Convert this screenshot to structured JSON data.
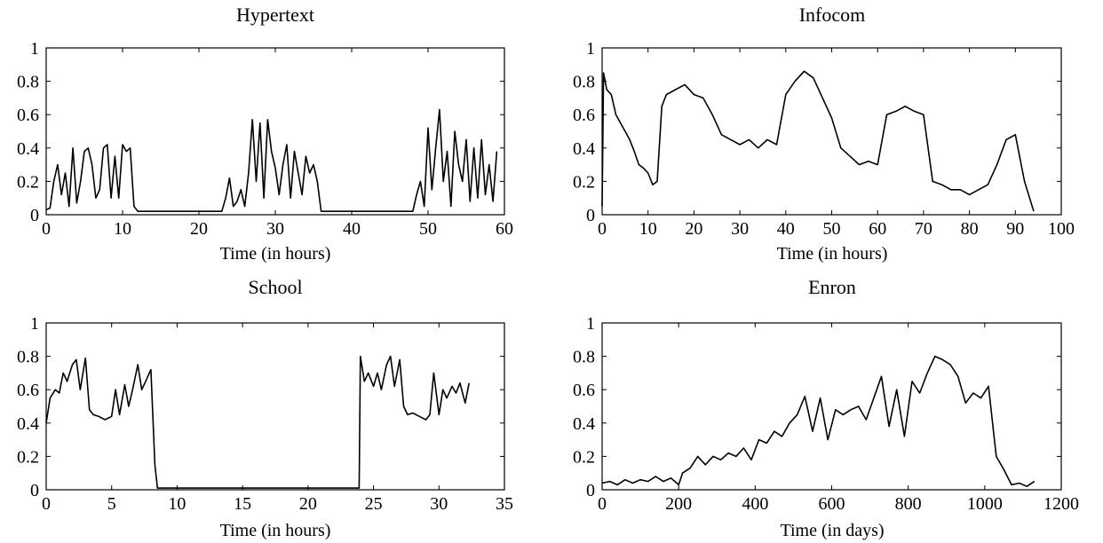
{
  "chart_data": [
    {
      "type": "line",
      "title": "Hypertext",
      "xlabel": "Time (in hours)",
      "ylabel": "",
      "xlim": [
        0,
        60
      ],
      "ylim": [
        0,
        1
      ],
      "xticks": [
        "0",
        "10",
        "20",
        "30",
        "40",
        "50",
        "60"
      ],
      "yticks": [
        "0",
        "0.2",
        "0.4",
        "0.6",
        "0.8",
        "1"
      ],
      "x": [
        0,
        0.5,
        1,
        1.5,
        2,
        2.5,
        3,
        3.5,
        4,
        4.5,
        5,
        5.5,
        6,
        6.5,
        7,
        7.5,
        8,
        8.5,
        9,
        9.5,
        10,
        10.5,
        11,
        11.5,
        12,
        13,
        15,
        17,
        20,
        23,
        23.5,
        24,
        24.5,
        25,
        25.5,
        26,
        26.5,
        27,
        27.5,
        28,
        28.5,
        29,
        29.5,
        30,
        30.5,
        31,
        31.5,
        32,
        32.5,
        33,
        33.5,
        34,
        34.5,
        35,
        35.5,
        36,
        38,
        42,
        46,
        48,
        48.5,
        49,
        49.5,
        50,
        50.5,
        51,
        51.5,
        52,
        52.5,
        53,
        53.5,
        54,
        54.5,
        55,
        55.5,
        56,
        56.5,
        57,
        57.5,
        58,
        58.5,
        59
      ],
      "values": [
        0.03,
        0.04,
        0.2,
        0.3,
        0.12,
        0.25,
        0.05,
        0.4,
        0.07,
        0.2,
        0.38,
        0.4,
        0.3,
        0.1,
        0.15,
        0.4,
        0.42,
        0.1,
        0.35,
        0.1,
        0.42,
        0.38,
        0.4,
        0.05,
        0.02,
        0.02,
        0.02,
        0.02,
        0.02,
        0.02,
        0.1,
        0.22,
        0.05,
        0.08,
        0.15,
        0.05,
        0.25,
        0.57,
        0.2,
        0.55,
        0.1,
        0.57,
        0.38,
        0.28,
        0.12,
        0.3,
        0.42,
        0.1,
        0.38,
        0.25,
        0.12,
        0.35,
        0.25,
        0.3,
        0.2,
        0.02,
        0.02,
        0.02,
        0.02,
        0.02,
        0.12,
        0.2,
        0.05,
        0.52,
        0.15,
        0.4,
        0.63,
        0.2,
        0.38,
        0.05,
        0.5,
        0.3,
        0.2,
        0.45,
        0.08,
        0.4,
        0.1,
        0.45,
        0.12,
        0.3,
        0.08,
        0.38
      ]
    },
    {
      "type": "line",
      "title": "Infocom",
      "xlabel": "Time (in hours)",
      "ylabel": "",
      "xlim": [
        0,
        100
      ],
      "ylim": [
        0,
        1
      ],
      "xticks": [
        "0",
        "10",
        "20",
        "30",
        "40",
        "50",
        "60",
        "70",
        "80",
        "90",
        "100"
      ],
      "yticks": [
        "0",
        "0.2",
        "0.4",
        "0.6",
        "0.8",
        "1"
      ],
      "x": [
        0,
        0.3,
        1,
        2,
        3,
        4,
        5,
        6,
        7,
        8,
        9,
        10,
        11,
        12,
        13,
        14,
        16,
        18,
        20,
        22,
        24,
        26,
        28,
        30,
        32,
        34,
        36,
        38,
        40,
        42,
        44,
        46,
        48,
        50,
        52,
        54,
        56,
        58,
        60,
        62,
        64,
        66,
        68,
        70,
        72,
        74,
        76,
        78,
        80,
        82,
        84,
        86,
        88,
        90,
        92,
        94
      ],
      "values": [
        0.05,
        0.85,
        0.75,
        0.72,
        0.6,
        0.55,
        0.5,
        0.45,
        0.38,
        0.3,
        0.28,
        0.25,
        0.18,
        0.2,
        0.65,
        0.72,
        0.75,
        0.78,
        0.72,
        0.7,
        0.6,
        0.48,
        0.45,
        0.42,
        0.45,
        0.4,
        0.45,
        0.42,
        0.72,
        0.8,
        0.86,
        0.82,
        0.7,
        0.58,
        0.4,
        0.35,
        0.3,
        0.32,
        0.3,
        0.6,
        0.62,
        0.65,
        0.62,
        0.6,
        0.2,
        0.18,
        0.15,
        0.15,
        0.12,
        0.15,
        0.18,
        0.3,
        0.45,
        0.48,
        0.2,
        0.02
      ]
    },
    {
      "type": "line",
      "title": "School",
      "xlabel": "Time (in hours)",
      "ylabel": "",
      "xlim": [
        0,
        35
      ],
      "ylim": [
        0,
        1
      ],
      "xticks": [
        "0",
        "5",
        "10",
        "15",
        "20",
        "25",
        "30",
        "35"
      ],
      "yticks": [
        "0",
        "0.2",
        "0.4",
        "0.6",
        "0.8",
        "1"
      ],
      "x": [
        0,
        0.3,
        0.7,
        1,
        1.3,
        1.6,
        2,
        2.3,
        2.6,
        3,
        3.3,
        3.6,
        4,
        4.5,
        5,
        5.3,
        5.6,
        6,
        6.3,
        6.6,
        7,
        7.3,
        7.6,
        8,
        8.3,
        8.5,
        8.7,
        9,
        12,
        16,
        20,
        23,
        23.9,
        24,
        24.3,
        24.6,
        25,
        25.3,
        25.6,
        26,
        26.3,
        26.6,
        27,
        27.3,
        27.6,
        28,
        28.5,
        29,
        29.3,
        29.6,
        30,
        30.3,
        30.6,
        31,
        31.3,
        31.6,
        32,
        32.3
      ],
      "values": [
        0.4,
        0.55,
        0.6,
        0.58,
        0.7,
        0.65,
        0.75,
        0.78,
        0.6,
        0.79,
        0.48,
        0.45,
        0.44,
        0.42,
        0.44,
        0.6,
        0.45,
        0.63,
        0.5,
        0.6,
        0.75,
        0.6,
        0.65,
        0.72,
        0.15,
        0.01,
        0.01,
        0.01,
        0.01,
        0.01,
        0.01,
        0.01,
        0.01,
        0.8,
        0.65,
        0.7,
        0.62,
        0.7,
        0.6,
        0.75,
        0.8,
        0.62,
        0.78,
        0.5,
        0.45,
        0.46,
        0.44,
        0.42,
        0.45,
        0.7,
        0.45,
        0.6,
        0.55,
        0.62,
        0.58,
        0.64,
        0.52,
        0.64
      ]
    },
    {
      "type": "line",
      "title": "Enron",
      "xlabel": "Time (in days)",
      "ylabel": "",
      "xlim": [
        0,
        1200
      ],
      "ylim": [
        0,
        1
      ],
      "xticks": [
        "0",
        "200",
        "400",
        "600",
        "800",
        "1000",
        "1200"
      ],
      "yticks": [
        "0",
        "0.2",
        "0.4",
        "0.6",
        "0.8",
        "1"
      ],
      "x": [
        0,
        20,
        40,
        60,
        80,
        100,
        120,
        140,
        160,
        180,
        200,
        210,
        230,
        250,
        270,
        290,
        310,
        330,
        350,
        370,
        390,
        410,
        430,
        450,
        470,
        490,
        510,
        530,
        550,
        570,
        590,
        610,
        630,
        650,
        670,
        690,
        710,
        730,
        750,
        770,
        790,
        810,
        830,
        850,
        870,
        890,
        910,
        930,
        950,
        970,
        990,
        1010,
        1030,
        1050,
        1070,
        1090,
        1110,
        1130
      ],
      "values": [
        0.04,
        0.05,
        0.03,
        0.06,
        0.04,
        0.06,
        0.05,
        0.08,
        0.05,
        0.07,
        0.03,
        0.1,
        0.13,
        0.2,
        0.15,
        0.2,
        0.18,
        0.22,
        0.2,
        0.25,
        0.18,
        0.3,
        0.28,
        0.35,
        0.32,
        0.4,
        0.45,
        0.56,
        0.35,
        0.55,
        0.3,
        0.48,
        0.45,
        0.48,
        0.5,
        0.42,
        0.55,
        0.68,
        0.38,
        0.6,
        0.32,
        0.65,
        0.58,
        0.7,
        0.8,
        0.78,
        0.75,
        0.68,
        0.52,
        0.58,
        0.55,
        0.62,
        0.2,
        0.12,
        0.03,
        0.04,
        0.02,
        0.05
      ]
    }
  ]
}
